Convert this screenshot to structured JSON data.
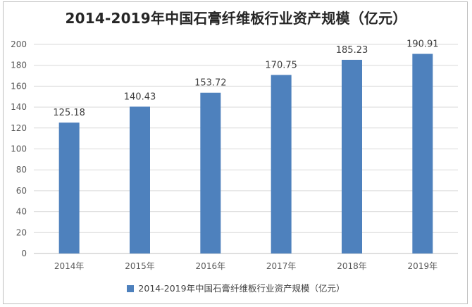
{
  "chart_data": {
    "type": "bar",
    "title": "2014-2019年中国石膏纤维板行业资产规模（亿元）",
    "categories": [
      "2014年",
      "2015年",
      "2016年",
      "2017年",
      "2018年",
      "2019年"
    ],
    "series": [
      {
        "name": "2014-2019年中国石膏纤维板行业资产规模（亿元）",
        "values": [
          125.18,
          140.43,
          153.72,
          170.75,
          185.23,
          190.91
        ],
        "data_labels": [
          "125.18",
          "140.43",
          "153.72",
          "170.75",
          "185.23",
          "190.91"
        ]
      }
    ],
    "ylim": [
      0,
      200
    ],
    "yticks": [
      "0",
      "20",
      "40",
      "60",
      "80",
      "100",
      "120",
      "140",
      "160",
      "180",
      "200"
    ],
    "grid": true,
    "legend": "bottom",
    "colors": {
      "bar": "#4e81bd",
      "grid": "#d9d9d9",
      "axis": "#bfbfbf"
    }
  }
}
